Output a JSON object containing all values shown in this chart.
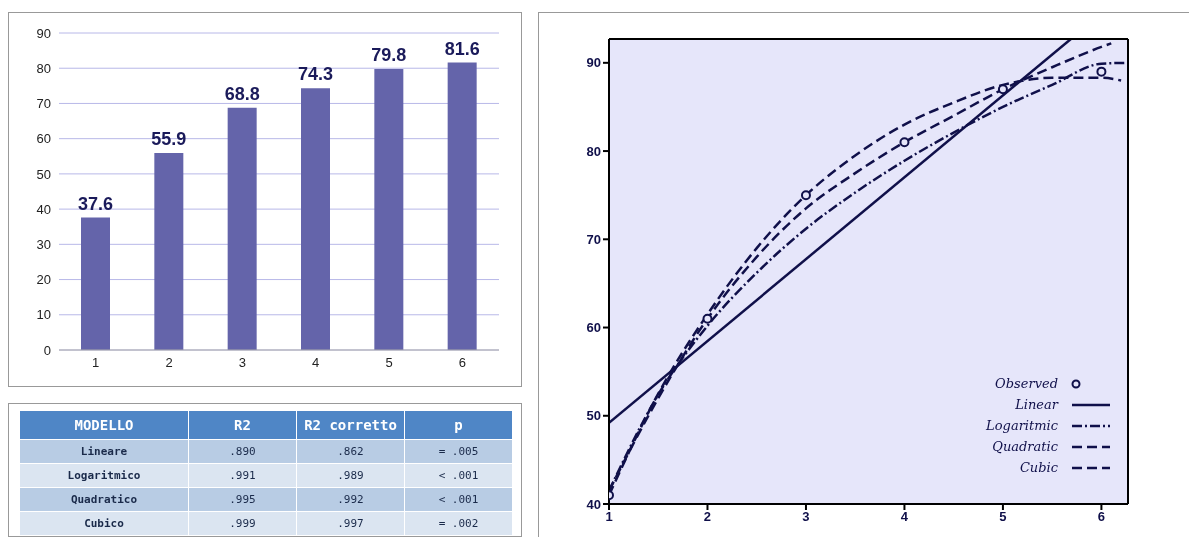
{
  "chart_data": [
    {
      "type": "bar",
      "categories": [
        "1",
        "2",
        "3",
        "4",
        "5",
        "6"
      ],
      "values": [
        37.6,
        55.9,
        68.8,
        74.3,
        79.8,
        81.6
      ],
      "color": "#6464aa",
      "ylim": [
        0,
        90
      ],
      "yticks": [
        0,
        10,
        20,
        30,
        40,
        50,
        60,
        70,
        80,
        90
      ],
      "grid": "y",
      "data_labels": true
    },
    {
      "type": "other",
      "annotations": [
        "MODELLO",
        "R2",
        "R2 corretto",
        "p",
        "Lineare",
        ".890",
        ".862",
        "= .005",
        "Logaritmico",
        ".991",
        ".989",
        "< .001",
        "Quadratico",
        ".995",
        ".992",
        "< .001",
        "Cubico",
        ".999",
        ".997",
        "= .002"
      ]
    },
    {
      "type": "line",
      "xlim": [
        1,
        6.27
      ],
      "ylim": [
        40,
        92.7
      ],
      "xticks": [
        1,
        2,
        3,
        4,
        5,
        6
      ],
      "yticks": [
        40,
        50,
        60,
        70,
        80,
        90
      ],
      "legend": "bottom right",
      "series": [
        {
          "name": "Observed",
          "type": "scatter",
          "marker": "circle",
          "color": "#10104a",
          "x": [
            1,
            2,
            3,
            4,
            5,
            6
          ],
          "values": [
            41,
            61,
            75,
            81,
            87,
            89
          ]
        },
        {
          "name": "Linear",
          "color": "#10104a",
          "line_style": "solid",
          "x": [
            1,
            5.69
          ],
          "values": [
            49.2,
            92.7
          ]
        },
        {
          "name": "Logaritmic",
          "color": "#10104a",
          "line_style": "dotted",
          "x": [
            1,
            1.5,
            2,
            2.5,
            3,
            3.5,
            4,
            4.5,
            5,
            5.5,
            6,
            6.27
          ],
          "values": [
            41.5,
            52.4,
            60.2,
            66.2,
            71.2,
            75.3,
            78.9,
            82.1,
            85,
            87.5,
            89.9,
            90
          ]
        },
        {
          "name": "Quadratic",
          "color": "#10104a",
          "line_style": "dashed",
          "x": [
            1,
            1.5,
            2,
            2.5,
            3,
            3.5,
            4,
            4.5,
            5,
            5.5,
            6,
            6.2
          ],
          "values": [
            41,
            52.5,
            61.5,
            69,
            75,
            79.5,
            83,
            85.5,
            87.5,
            88.3,
            88.3,
            88
          ]
        },
        {
          "name": "Cubic",
          "color": "#10104a",
          "line_style": "dashed",
          "x": [
            1,
            1.5,
            2,
            2.5,
            3,
            3.5,
            4,
            4.5,
            5,
            5.5,
            6,
            6.1
          ],
          "values": [
            41.5,
            52,
            61,
            68,
            73.5,
            77.5,
            81,
            84,
            87,
            89.5,
            91.8,
            92.2
          ]
        }
      ]
    }
  ]
}
